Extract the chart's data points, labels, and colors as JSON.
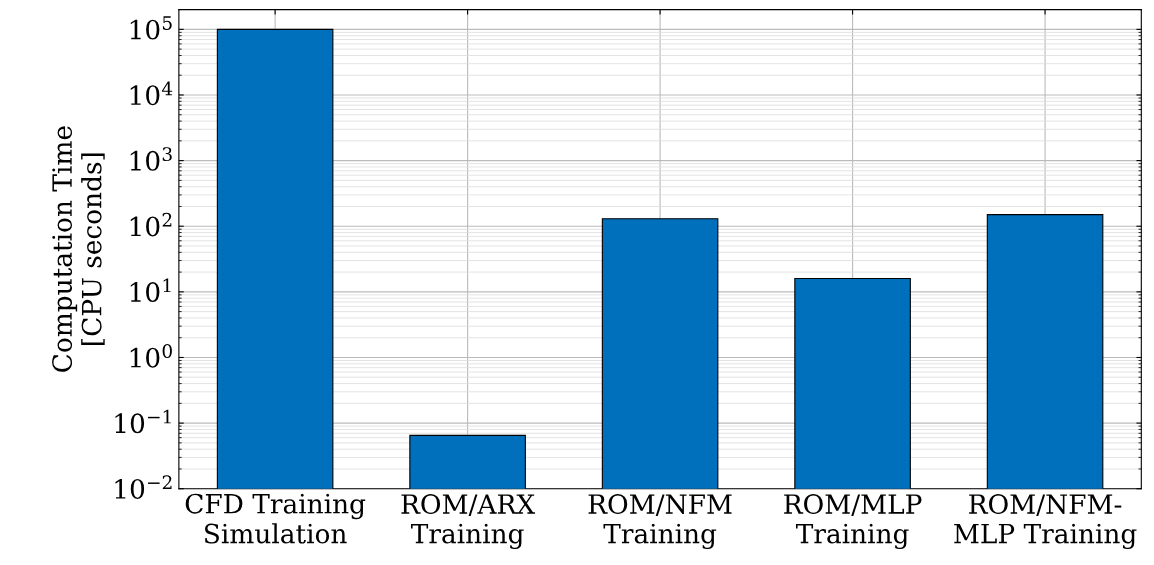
{
  "chart_data": {
    "type": "bar",
    "ylabel": "Computation Time\n[CPU seconds]",
    "categories": [
      "CFD Training\nSimulation",
      "ROM/ARX\nTraining",
      "ROM/NFM\nTraining",
      "ROM/MLP\nTraining",
      "ROM/NFM-\nMLP Training"
    ],
    "values": [
      100000,
      0.065,
      130,
      16,
      150
    ],
    "color": "#0070bc",
    "log": "y",
    "ylim": [
      0.01,
      200000
    ],
    "yticks": [
      {
        "value": 0.01,
        "label": "10$^{−2}$"
      },
      {
        "value": 0.1,
        "label": "10$^{−1}$"
      },
      {
        "value": 1,
        "label": "10$^{0}$"
      },
      {
        "value": 10,
        "label": "10$^{1}$"
      },
      {
        "value": 100,
        "label": "10$^{2}$"
      },
      {
        "value": 1000,
        "label": "10$^{3}$"
      },
      {
        "value": 10000,
        "label": "10$^{4}$"
      },
      {
        "value": 100000,
        "label": "10$^{5}$"
      }
    ],
    "grid": true
  }
}
